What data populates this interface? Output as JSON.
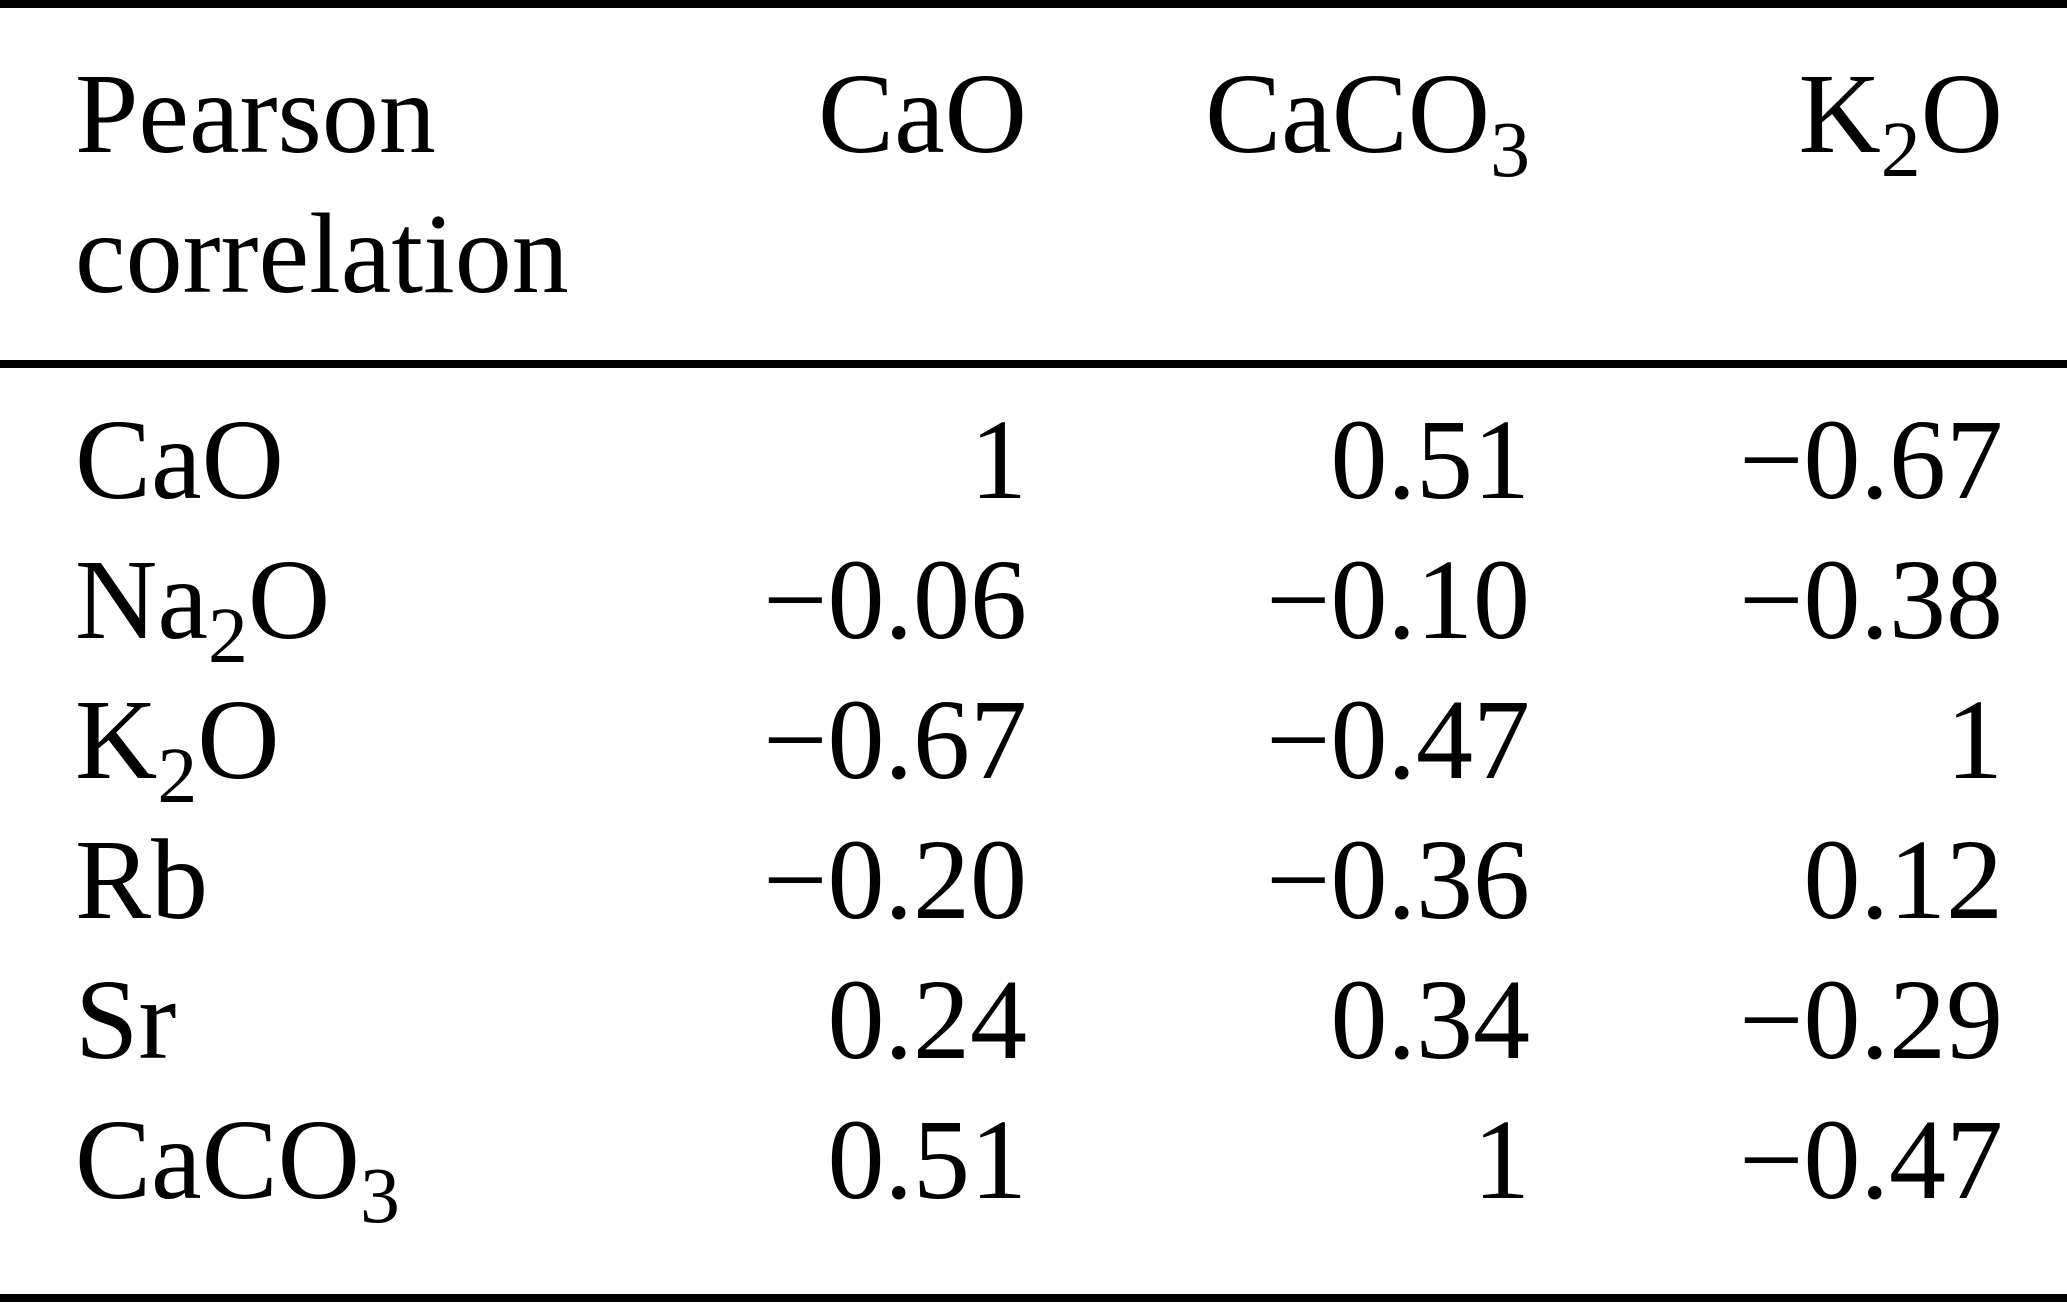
{
  "page": {
    "background": "#ffffff",
    "text_color": "#000000",
    "rule_color": "#000000"
  },
  "table": {
    "corner_lines": [
      "Pearson",
      "correlation"
    ],
    "columns": [
      {
        "id": "CaO",
        "parts": [
          {
            "text": "CaO",
            "sub": false
          }
        ]
      },
      {
        "id": "CaCO3",
        "parts": [
          {
            "text": "CaCO",
            "sub": false
          },
          {
            "text": "3",
            "sub": true
          }
        ]
      },
      {
        "id": "K2O",
        "parts": [
          {
            "text": "K",
            "sub": false
          },
          {
            "text": "2",
            "sub": true
          },
          {
            "text": "O",
            "sub": false
          }
        ]
      }
    ],
    "rows": [
      {
        "id": "CaO",
        "label_parts": [
          {
            "text": "CaO",
            "sub": false
          }
        ],
        "values": [
          "1",
          "0.51",
          "−0.67"
        ]
      },
      {
        "id": "Na2O",
        "label_parts": [
          {
            "text": "Na",
            "sub": false
          },
          {
            "text": "2",
            "sub": true
          },
          {
            "text": "O",
            "sub": false
          }
        ],
        "values": [
          "−0.06",
          "−0.10",
          "−0.38"
        ]
      },
      {
        "id": "K2O",
        "label_parts": [
          {
            "text": "K",
            "sub": false
          },
          {
            "text": "2",
            "sub": true
          },
          {
            "text": "O",
            "sub": false
          }
        ],
        "values": [
          "−0.67",
          "−0.47",
          "1"
        ]
      },
      {
        "id": "Rb",
        "label_parts": [
          {
            "text": "Rb",
            "sub": false
          }
        ],
        "values": [
          "−0.20",
          "−0.36",
          "0.12"
        ]
      },
      {
        "id": "Sr",
        "label_parts": [
          {
            "text": "Sr",
            "sub": false
          }
        ],
        "values": [
          "0.24",
          "0.34",
          "−0.29"
        ]
      },
      {
        "id": "CaCO3",
        "label_parts": [
          {
            "text": "CaCO",
            "sub": false
          },
          {
            "text": "3",
            "sub": true
          }
        ],
        "values": [
          "0.51",
          "1",
          "−0.47"
        ]
      }
    ]
  }
}
